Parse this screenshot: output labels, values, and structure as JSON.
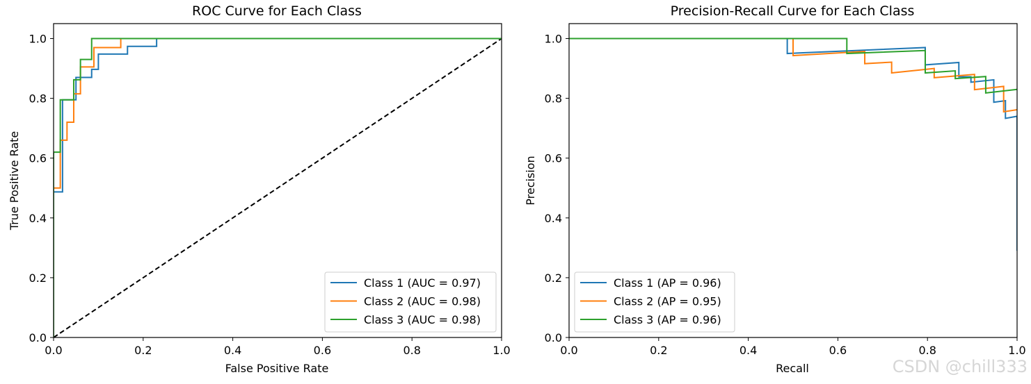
{
  "watermark": "CSDN @chill333",
  "colors": {
    "class1": "#1f77b4",
    "class2": "#ff7f0e",
    "class3": "#2ca02c",
    "diagonal": "#000000"
  },
  "chart_data": [
    {
      "type": "line",
      "title": "ROC Curve for Each Class",
      "xlabel": "False Positive Rate",
      "ylabel": "True Positive Rate",
      "xlim": [
        0,
        1
      ],
      "ylim": [
        0,
        1.05
      ],
      "xticks": [
        "0.0",
        "0.2",
        "0.4",
        "0.6",
        "0.8",
        "1.0"
      ],
      "yticks": [
        "0.0",
        "0.2",
        "0.4",
        "0.6",
        "0.8",
        "1.0"
      ],
      "legend_position": "lower-right",
      "reference_line": {
        "x": [
          0,
          1
        ],
        "y": [
          0,
          1
        ],
        "style": "dashed"
      },
      "series": [
        {
          "name": "Class 1 (AUC = 0.97)",
          "color": "#1f77b4",
          "x": [
            0,
            0,
            0.02,
            0.02,
            0.05,
            0.05,
            0.06,
            0.06,
            0.085,
            0.085,
            0.1,
            0.1,
            0.165,
            0.165,
            0.23,
            0.23,
            1
          ],
          "y": [
            0,
            0.487,
            0.487,
            0.795,
            0.795,
            0.87,
            0.87,
            0.87,
            0.87,
            0.897,
            0.897,
            0.948,
            0.948,
            0.974,
            0.974,
            1.0,
            1.0
          ]
        },
        {
          "name": "Class 2 (AUC = 0.98)",
          "color": "#ff7f0e",
          "x": [
            0,
            0,
            0.015,
            0.015,
            0.03,
            0.03,
            0.045,
            0.045,
            0.06,
            0.06,
            0.09,
            0.09,
            0.15,
            0.15,
            1
          ],
          "y": [
            0,
            0.5,
            0.5,
            0.66,
            0.66,
            0.72,
            0.72,
            0.815,
            0.815,
            0.905,
            0.905,
            0.97,
            0.97,
            1.0,
            1.0
          ]
        },
        {
          "name": "Class 3 (AUC = 0.98)",
          "color": "#2ca02c",
          "x": [
            0,
            0,
            0.015,
            0.015,
            0.045,
            0.045,
            0.06,
            0.06,
            0.085,
            0.085,
            1
          ],
          "y": [
            0,
            0.62,
            0.62,
            0.795,
            0.795,
            0.862,
            0.862,
            0.93,
            0.93,
            1.0,
            1.0
          ]
        }
      ]
    },
    {
      "type": "line",
      "title": "Precision-Recall Curve for Each Class",
      "xlabel": "Recall",
      "ylabel": "Precision",
      "xlim": [
        0,
        1
      ],
      "ylim": [
        0,
        1.05
      ],
      "xticks": [
        "0.0",
        "0.2",
        "0.4",
        "0.6",
        "0.8",
        "1.0"
      ],
      "yticks": [
        "0.0",
        "0.2",
        "0.4",
        "0.6",
        "0.8",
        "1.0"
      ],
      "legend_position": "lower-left",
      "series": [
        {
          "name": "Class 1 (AP = 0.96)",
          "color": "#1f77b4",
          "x": [
            0,
            0.487,
            0.487,
            0.795,
            0.795,
            0.87,
            0.87,
            0.897,
            0.897,
            0.948,
            0.948,
            0.974,
            0.974,
            1.0,
            1.0
          ],
          "y": [
            1.0,
            1.0,
            0.95,
            0.97,
            0.912,
            0.92,
            0.872,
            0.872,
            0.854,
            0.862,
            0.787,
            0.792,
            0.733,
            0.74,
            0.29
          ]
        },
        {
          "name": "Class 2 (AP = 0.95)",
          "color": "#ff7f0e",
          "x": [
            0,
            0.5,
            0.5,
            0.66,
            0.66,
            0.72,
            0.72,
            0.815,
            0.815,
            0.905,
            0.905,
            0.97,
            0.97,
            1.0
          ],
          "y": [
            1.0,
            1.0,
            0.943,
            0.957,
            0.916,
            0.921,
            0.885,
            0.9,
            0.869,
            0.88,
            0.829,
            0.84,
            0.755,
            0.762
          ]
        },
        {
          "name": "Class 3 (AP = 0.96)",
          "color": "#2ca02c",
          "x": [
            0,
            0.62,
            0.62,
            0.795,
            0.795,
            0.862,
            0.862,
            0.93,
            0.93,
            1.0
          ],
          "y": [
            1.0,
            1.0,
            0.95,
            0.96,
            0.885,
            0.892,
            0.866,
            0.873,
            0.818,
            0.83
          ]
        }
      ]
    }
  ]
}
